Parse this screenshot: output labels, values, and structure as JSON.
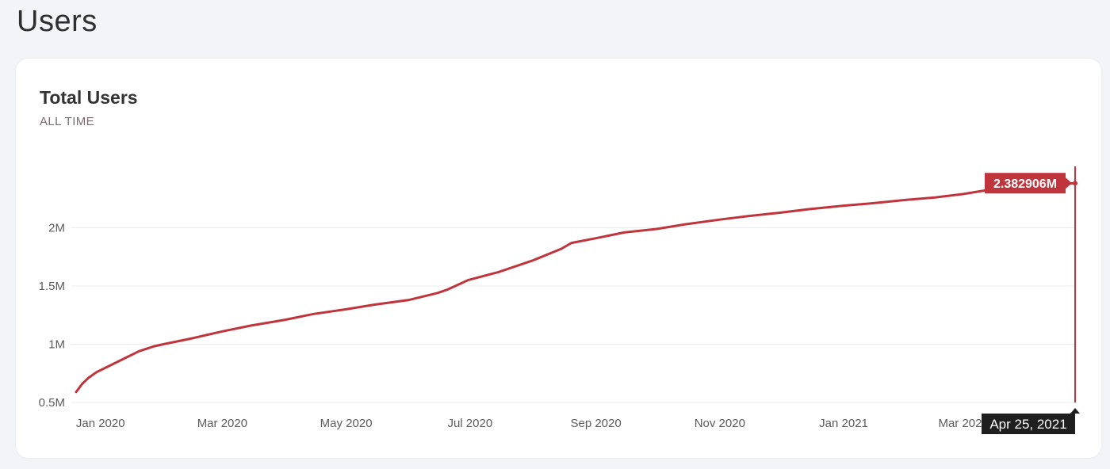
{
  "page": {
    "title": "Users"
  },
  "card": {
    "title": "Total Users",
    "subtitle": "ALL TIME"
  },
  "colors": {
    "line": "#c0343c",
    "tooltip_bg": "#1f1f1f",
    "grid": "#ececec"
  },
  "chart_data": {
    "type": "line",
    "title": "Total Users",
    "subtitle": "ALL TIME",
    "xlabel": "",
    "ylabel": "",
    "ylim": [
      0.5,
      2.5
    ],
    "y_ticks": [
      0.5,
      1,
      1.5,
      2
    ],
    "y_tick_labels": [
      "0.5M",
      "1M",
      "1.5M",
      "2M"
    ],
    "x_tick_labels": [
      "Jan 2020",
      "Mar 2020",
      "May 2020",
      "Jul 2020",
      "Sep 2020",
      "Nov 2020",
      "Jan 2021",
      "Mar 2021"
    ],
    "x_tick_dates": [
      "2020-01-01",
      "2020-03-01",
      "2020-05-01",
      "2020-07-01",
      "2020-09-01",
      "2020-11-01",
      "2021-01-01",
      "2021-03-01"
    ],
    "grid": true,
    "series": [
      {
        "unit": "M",
        "points": [
          [
            "2019-12-20",
            0.59
          ],
          [
            "2019-12-23",
            0.66
          ],
          [
            "2019-12-26",
            0.71
          ],
          [
            "2019-12-30",
            0.76
          ],
          [
            "2020-01-06",
            0.82
          ],
          [
            "2020-01-13",
            0.88
          ],
          [
            "2020-01-20",
            0.94
          ],
          [
            "2020-01-27",
            0.98
          ],
          [
            "2020-02-01",
            1.0
          ],
          [
            "2020-02-15",
            1.05
          ],
          [
            "2020-03-01",
            1.11
          ],
          [
            "2020-03-15",
            1.16
          ],
          [
            "2020-04-01",
            1.21
          ],
          [
            "2020-04-15",
            1.26
          ],
          [
            "2020-05-01",
            1.3
          ],
          [
            "2020-05-15",
            1.34
          ],
          [
            "2020-06-01",
            1.38
          ],
          [
            "2020-06-15",
            1.44
          ],
          [
            "2020-06-20",
            1.47
          ],
          [
            "2020-06-30",
            1.55
          ],
          [
            "2020-07-15",
            1.62
          ],
          [
            "2020-08-01",
            1.72
          ],
          [
            "2020-08-15",
            1.82
          ],
          [
            "2020-08-20",
            1.87
          ],
          [
            "2020-09-01",
            1.91
          ],
          [
            "2020-09-15",
            1.96
          ],
          [
            "2020-10-01",
            1.99
          ],
          [
            "2020-10-15",
            2.03
          ],
          [
            "2020-11-01",
            2.07
          ],
          [
            "2020-11-15",
            2.1
          ],
          [
            "2020-12-01",
            2.13
          ],
          [
            "2020-12-15",
            2.16
          ],
          [
            "2021-01-01",
            2.19
          ],
          [
            "2021-01-15",
            2.21
          ],
          [
            "2021-02-01",
            2.24
          ],
          [
            "2021-02-15",
            2.26
          ],
          [
            "2021-03-01",
            2.29
          ],
          [
            "2021-03-15",
            2.33
          ],
          [
            "2021-03-25",
            2.36
          ],
          [
            "2021-04-25",
            2.382906
          ]
        ]
      }
    ],
    "hover": {
      "date_label": "Apr 25, 2021",
      "value_label": "2.382906M"
    }
  }
}
